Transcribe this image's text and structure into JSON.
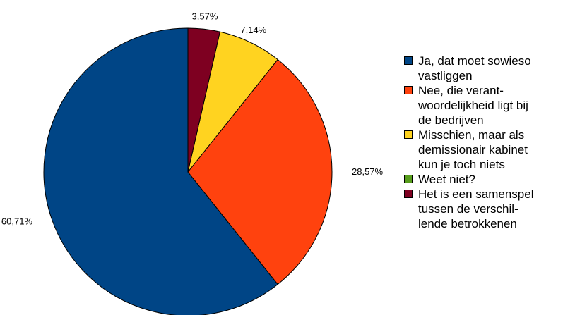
{
  "chart_data": {
    "type": "pie",
    "title": "",
    "slices": [
      {
        "label": "Ja, dat moet sowieso\nvastliggen",
        "value": 60.71,
        "data_label": "60,71%",
        "color": "#004586"
      },
      {
        "label": "Nee, die verant-\nwoordelijkheid ligt bij\nde bedrijven",
        "value": 28.57,
        "data_label": "28,57%",
        "color": "#ff420e"
      },
      {
        "label": "Misschien, maar als\ndemissionair kabinet\nkun je toch niets",
        "value": 7.14,
        "data_label": "7,14%",
        "color": "#ffd320"
      },
      {
        "label": "Weet niet?",
        "value": 0,
        "data_label": "",
        "color": "#579d1c"
      },
      {
        "label": "Het is een samenspel\ntussen de verschil-\nlende betrokkenen",
        "value": 3.57,
        "data_label": "3,57%",
        "color": "#7e0021"
      }
    ],
    "legend_position": "right"
  }
}
